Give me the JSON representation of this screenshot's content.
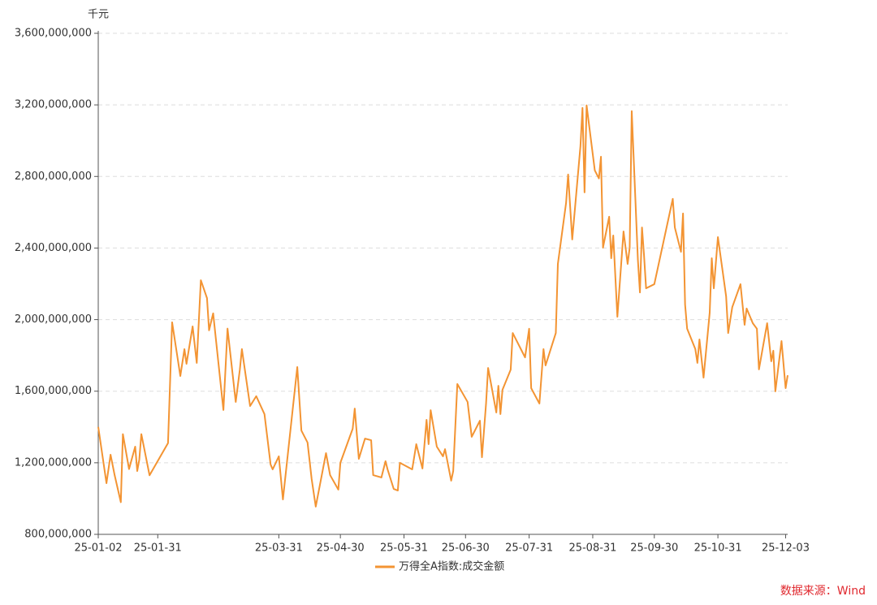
{
  "chart_data": {
    "type": "line",
    "unit_label": "千元",
    "source": "数据来源：Wind",
    "x": [
      "25-01-02",
      "25-01-06",
      "25-01-08",
      "25-01-10",
      "25-01-13",
      "25-01-14",
      "25-01-17",
      "25-01-20",
      "25-01-21",
      "25-01-22",
      "25-01-23",
      "25-01-27",
      "25-02-05",
      "25-02-07",
      "25-02-11",
      "25-02-13",
      "25-02-14",
      "25-02-17",
      "25-02-19",
      "25-02-21",
      "25-02-24",
      "25-02-25",
      "25-02-27",
      "25-03-04",
      "25-03-06",
      "25-03-10",
      "25-03-12",
      "25-03-13",
      "25-03-17",
      "25-03-20",
      "25-03-24",
      "25-03-27",
      "25-03-28",
      "25-03-31",
      "25-04-02",
      "25-04-09",
      "25-04-11",
      "25-04-14",
      "25-04-16",
      "25-04-18",
      "25-04-23",
      "25-04-25",
      "25-04-29",
      "25-04-30",
      "25-05-06",
      "25-05-07",
      "25-05-09",
      "25-05-12",
      "25-05-15",
      "25-05-16",
      "25-05-20",
      "25-05-22",
      "25-05-23",
      "25-05-26",
      "25-05-28",
      "25-05-29",
      "25-06-04",
      "25-06-06",
      "25-06-09",
      "25-06-11",
      "25-06-12",
      "25-06-13",
      "25-06-16",
      "25-06-19",
      "25-06-20",
      "25-06-23",
      "25-06-24",
      "25-06-26",
      "25-07-01",
      "25-07-03",
      "25-07-07",
      "25-07-08",
      "25-07-10",
      "25-07-11",
      "25-07-15",
      "25-07-16",
      "25-07-17",
      "25-07-18",
      "25-07-22",
      "25-07-23",
      "25-07-28",
      "25-07-29",
      "25-07-31",
      "25-08-01",
      "25-08-05",
      "25-08-07",
      "25-08-08",
      "25-08-13",
      "25-08-14",
      "25-08-18",
      "25-08-19",
      "25-08-21",
      "25-08-25",
      "25-08-26",
      "25-08-27",
      "25-08-28",
      "25-09-01",
      "25-09-03",
      "25-09-04",
      "25-09-05",
      "25-09-08",
      "25-09-09",
      "25-09-10",
      "25-09-12",
      "25-09-15",
      "25-09-17",
      "25-09-18",
      "25-09-19",
      "25-09-22",
      "25-09-23",
      "25-09-24",
      "25-09-25",
      "25-09-26",
      "25-09-30",
      "25-10-09",
      "25-10-10",
      "25-10-13",
      "25-10-14",
      "25-10-15",
      "25-10-16",
      "25-10-20",
      "25-10-21",
      "25-10-22",
      "25-10-24",
      "25-10-27",
      "25-10-28",
      "25-10-29",
      "25-10-31",
      "25-11-04",
      "25-11-05",
      "25-11-07",
      "25-11-11",
      "25-11-13",
      "25-11-14",
      "25-11-17",
      "25-11-19",
      "25-11-20",
      "25-11-24",
      "25-11-26",
      "25-11-27",
      "25-11-28",
      "25-12-01",
      "25-12-03",
      "25-12-04"
    ],
    "series": [
      {
        "name": "万得全A指数:成交金额",
        "color": "#f39433",
        "values": [
          1400000000,
          1086000000,
          1245000000,
          1130000000,
          980000000,
          1360000000,
          1165000000,
          1290000000,
          1154000000,
          1218000000,
          1360000000,
          1130000000,
          1310000000,
          1985000000,
          1685000000,
          1835000000,
          1753000000,
          1962000000,
          1758000000,
          2220000000,
          2120000000,
          1940000000,
          2035000000,
          1495000000,
          1950000000,
          1540000000,
          1720000000,
          1835000000,
          1517000000,
          1572000000,
          1472000000,
          1190000000,
          1163000000,
          1236000000,
          995000000,
          1735000000,
          1380000000,
          1313000000,
          1109000000,
          955000000,
          1254000000,
          1131000000,
          1050000000,
          1200000000,
          1390000000,
          1503000000,
          1222000000,
          1335000000,
          1326000000,
          1131000000,
          1118000000,
          1209000000,
          1163000000,
          1054000000,
          1045000000,
          1200000000,
          1163000000,
          1304000000,
          1168000000,
          1440000000,
          1304000000,
          1494000000,
          1290000000,
          1236000000,
          1276000000,
          1100000000,
          1154000000,
          1640000000,
          1540000000,
          1345000000,
          1435000000,
          1231000000,
          1531000000,
          1730000000,
          1481000000,
          1630000000,
          1472000000,
          1608000000,
          1720000000,
          1925000000,
          1812000000,
          1789000000,
          1949000000,
          1617000000,
          1531000000,
          1835000000,
          1744000000,
          1925000000,
          2311000000,
          2652000000,
          2811000000,
          2448000000,
          2969000000,
          3183000000,
          2711000000,
          3197000000,
          2834000000,
          2789000000,
          2910000000,
          2402000000,
          2575000000,
          2343000000,
          2470000000,
          2016000000,
          2493000000,
          2311000000,
          2402000000,
          3165000000,
          2334000000,
          2152000000,
          2515000000,
          2357000000,
          2175000000,
          2198000000,
          2675000000,
          2515000000,
          2379000000,
          2593000000,
          2084000000,
          1949000000,
          1835000000,
          1758000000,
          1889000000,
          1676000000,
          2039000000,
          2343000000,
          2175000000,
          2461000000,
          2130000000,
          1925000000,
          2070000000,
          2198000000,
          1971000000,
          2062000000,
          1980000000,
          1949000000,
          1722000000,
          1980000000,
          1767000000,
          1826000000,
          1599000000,
          1880000000,
          1617000000,
          1689000000
        ]
      }
    ],
    "xlim": [
      "25-01-02",
      "25-12-04"
    ],
    "xticks": [
      "25-01-02",
      "25-01-31",
      "25-03-31",
      "25-04-30",
      "25-05-31",
      "25-06-30",
      "25-07-31",
      "25-08-31",
      "25-09-30",
      "25-10-31",
      "25-12-03"
    ],
    "ylim": [
      800000000,
      3600000000
    ],
    "yticks": [
      {
        "value": 800000000,
        "label": "800,000,000"
      },
      {
        "value": 1200000000,
        "label": "1,200,000,000"
      },
      {
        "value": 1600000000,
        "label": "1,600,000,000"
      },
      {
        "value": 2000000000,
        "label": "2,000,000,000"
      },
      {
        "value": 2400000000,
        "label": "2,400,000,000"
      },
      {
        "value": 2800000000,
        "label": "2,800,000,000"
      },
      {
        "value": 3200000000,
        "label": "3,200,000,000"
      },
      {
        "value": 3600000000,
        "label": "3,600,000,000"
      }
    ],
    "grid": true
  }
}
